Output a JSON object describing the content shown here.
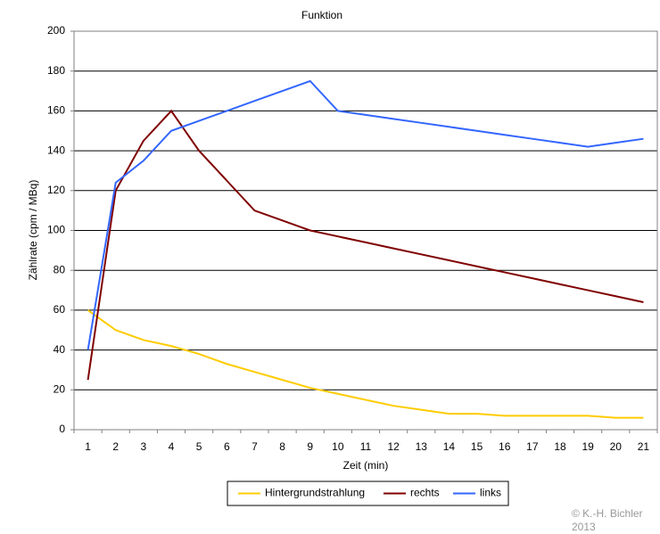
{
  "chart_data": {
    "type": "line",
    "title": "Funktion",
    "x_label": "Zeit (min)",
    "y_label": "Zählrate (cpm / MBq)",
    "categories": [
      "1",
      "2",
      "3",
      "4",
      "5",
      "6",
      "7",
      "8",
      "9",
      "10",
      "11",
      "12",
      "13",
      "14",
      "15",
      "16",
      "17",
      "18",
      "19",
      "20",
      "21"
    ],
    "series": [
      {
        "name": "Hintergrundstrahlung",
        "color": "#ffcc00",
        "values": [
          60,
          50,
          45,
          42,
          38,
          33,
          29,
          25,
          21,
          18,
          15,
          12,
          10,
          8,
          8,
          7,
          7,
          7,
          7,
          6,
          6
        ]
      },
      {
        "name": "rechts",
        "color": "#800000",
        "values": [
          25,
          120,
          145,
          160,
          140,
          125,
          110,
          105,
          100,
          97,
          94,
          91,
          88,
          85,
          82,
          79,
          76,
          73,
          70,
          67,
          64
        ]
      },
      {
        "name": "links",
        "color": "#3366ff",
        "values": [
          40,
          124,
          135,
          150,
          155,
          160,
          165,
          170,
          175,
          160,
          158,
          156,
          154,
          152,
          150,
          148,
          146,
          144,
          142,
          144,
          146
        ]
      }
    ],
    "ylim": [
      0,
      200
    ],
    "yticks": [
      0,
      20,
      40,
      60,
      80,
      100,
      120,
      140,
      160,
      180,
      200
    ],
    "grid": true,
    "legend": "bottom",
    "copyright": [
      "© K.-H. Bichler",
      "2013"
    ]
  }
}
